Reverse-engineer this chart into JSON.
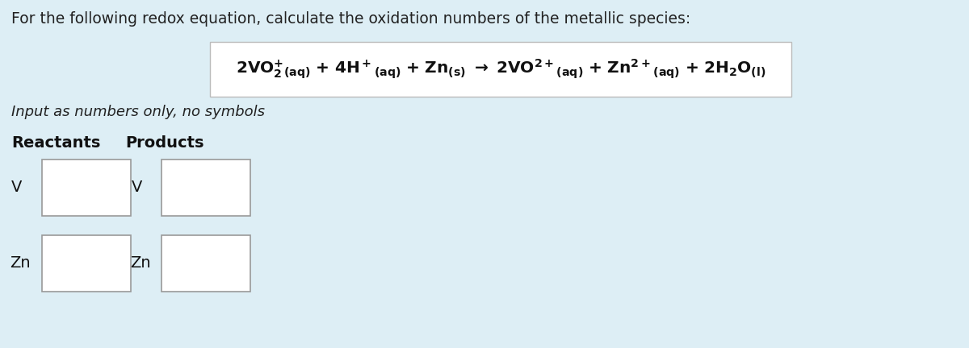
{
  "background_color": "#ddeef5",
  "equation_box_color": "#ffffff",
  "input_box_color": "#ffffff",
  "input_box_border": "#999999",
  "title_text": "For the following redox equation, calculate the oxidation numbers of the metallic species:",
  "title_fontsize": 13.5,
  "title_color": "#222222",
  "italic_text": "Input as numbers only, no symbols",
  "italic_fontsize": 13.0,
  "italic_color": "#222222",
  "bold_reactants": "Reactants",
  "bold_products": "Products",
  "header_fontsize": 14,
  "label_fontsize": 14,
  "label_color": "#111111",
  "V_label": "V",
  "Zn_label": "Zn",
  "eq_fontsize": 14.5,
  "eq_color": "#111111"
}
